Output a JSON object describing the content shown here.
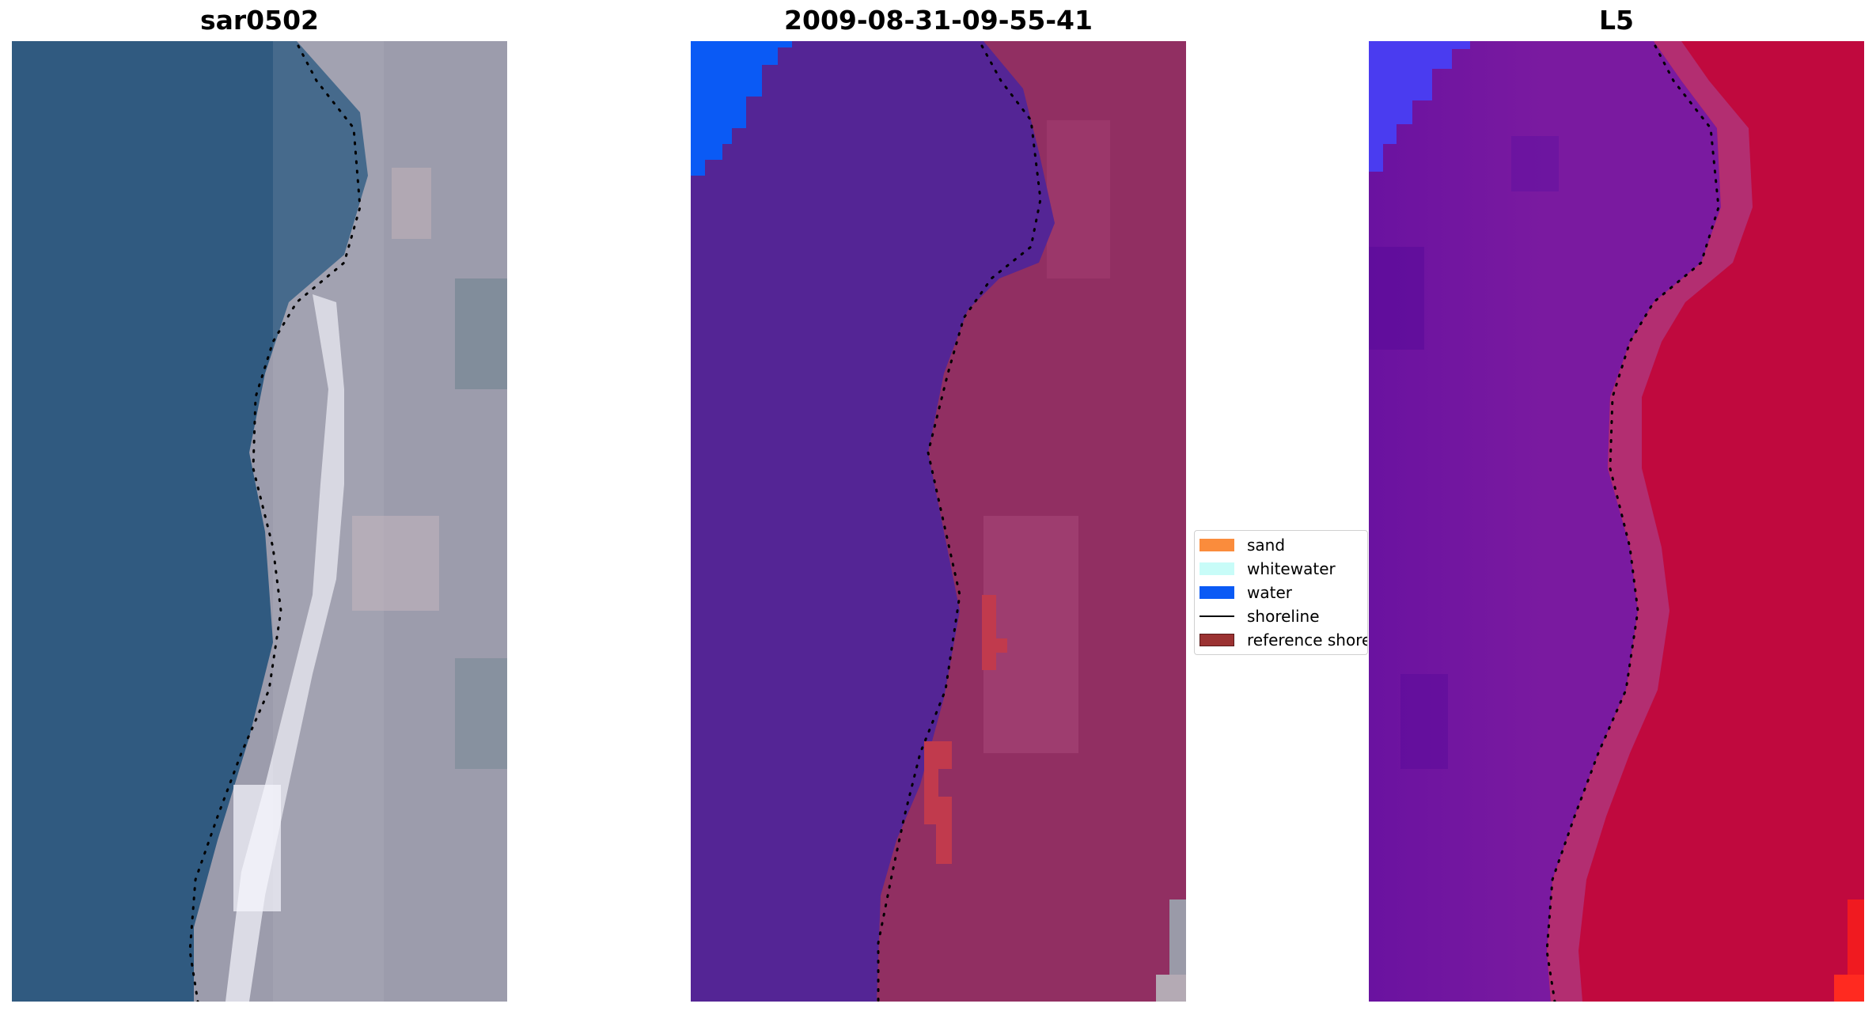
{
  "panels": [
    {
      "title": "sar0502"
    },
    {
      "title": "2009-08-31-09-55-41"
    },
    {
      "title": "L5"
    }
  ],
  "legend": {
    "items": [
      {
        "label": "sand",
        "color": "#fa8c3c"
      },
      {
        "label": "whitewater",
        "color": "#c8fcf8"
      },
      {
        "label": "water",
        "color": "#0a5af5"
      },
      {
        "label": "shoreline",
        "color": "#000000"
      },
      {
        "label": "reference shoreline",
        "color": "#9b3232"
      }
    ]
  }
}
